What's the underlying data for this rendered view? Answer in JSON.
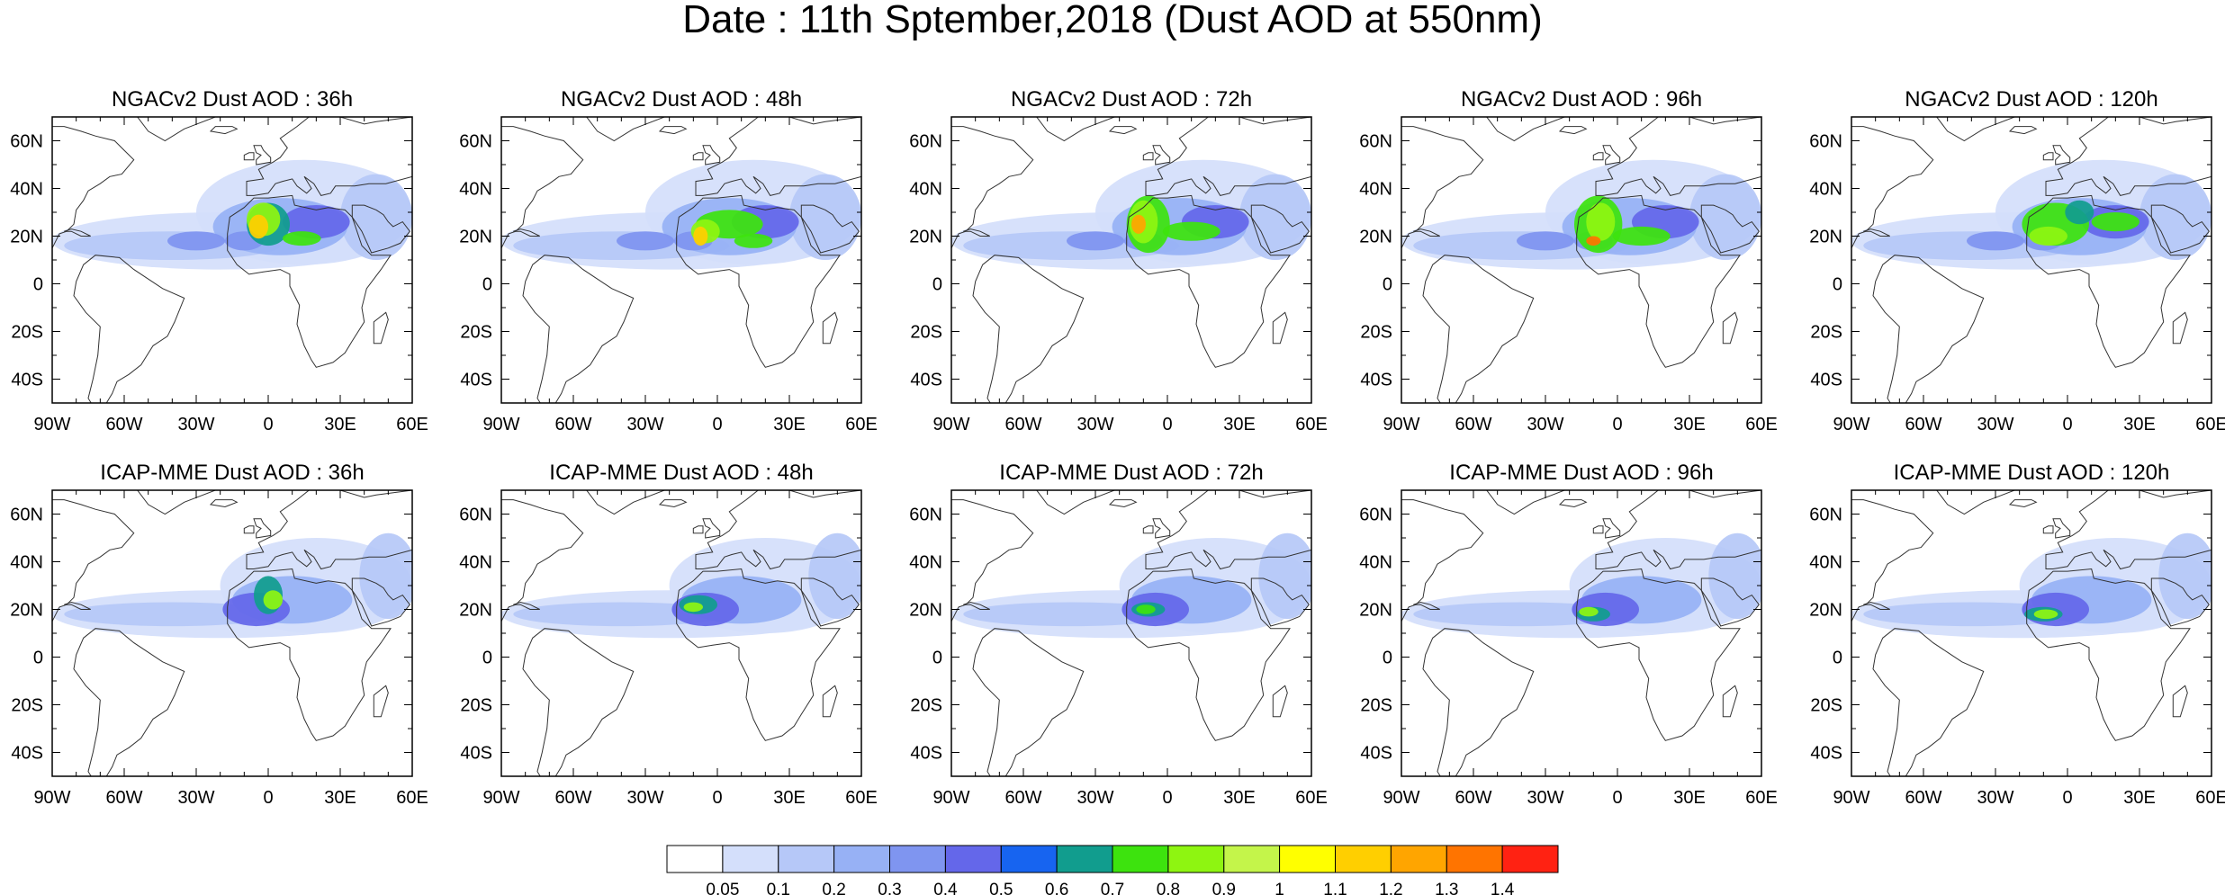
{
  "title": "Date : 11th Sptember,2018 (Dust AOD at 550nm)",
  "lon_labels": [
    "90W",
    "60W",
    "30W",
    "0",
    "30E",
    "60E"
  ],
  "lat_labels": [
    "60N",
    "40N",
    "20N",
    "0",
    "20S",
    "40S"
  ],
  "map_extent": {
    "lon": [
      -90,
      60
    ],
    "lat": [
      -50,
      70
    ]
  },
  "rows": [
    {
      "model": "NGACv2",
      "panels": [
        {
          "title": "NGACv2 Dust AOD : 36h",
          "lead_hours": 36
        },
        {
          "title": "NGACv2 Dust AOD : 48h",
          "lead_hours": 48
        },
        {
          "title": "NGACv2 Dust AOD : 72h",
          "lead_hours": 72
        },
        {
          "title": "NGACv2 Dust AOD : 96h",
          "lead_hours": 96
        },
        {
          "title": "NGACv2 Dust AOD : 120h",
          "lead_hours": 120
        }
      ]
    },
    {
      "model": "ICAP-MME",
      "panels": [
        {
          "title": "ICAP-MME Dust AOD : 36h",
          "lead_hours": 36
        },
        {
          "title": "ICAP-MME Dust AOD : 48h",
          "lead_hours": 48
        },
        {
          "title": "ICAP-MME Dust AOD : 72h",
          "lead_hours": 72
        },
        {
          "title": "ICAP-MME Dust AOD : 96h",
          "lead_hours": 96
        },
        {
          "title": "ICAP-MME Dust AOD : 120h",
          "lead_hours": 120
        }
      ]
    }
  ],
  "colorbar": {
    "labels": [
      "0.05",
      "0.1",
      "0.2",
      "0.3",
      "0.4",
      "0.5",
      "0.6",
      "0.7",
      "0.8",
      "0.9",
      "1",
      "1.1",
      "1.2",
      "1.3",
      "1.4"
    ],
    "colors": [
      "#ffffff",
      "#d4dffb",
      "#b6c8f8",
      "#97b1f5",
      "#7f95f0",
      "#6467ea",
      "#1764f0",
      "#119d8e",
      "#3de30e",
      "#8ef511",
      "#c4f54a",
      "#ffff00",
      "#ffcf00",
      "#ffa500",
      "#ff7400",
      "#ff2212"
    ]
  },
  "colors": {
    "land_outline": "#333333",
    "frame": "#000000"
  }
}
